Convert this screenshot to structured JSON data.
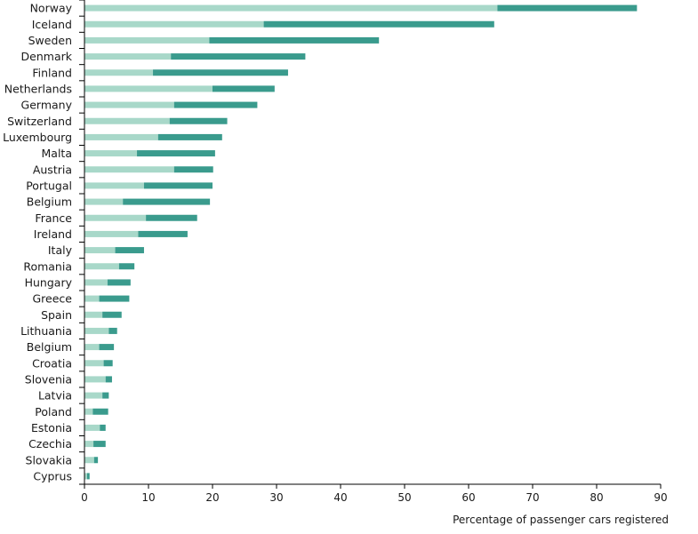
{
  "chart_data": {
    "type": "bar",
    "orientation": "horizontal",
    "stacked": true,
    "categories": [
      "Norway",
      "Iceland",
      "Sweden",
      "Denmark",
      "Finland",
      "Netherlands",
      "Germany",
      "Switzerland",
      "Luxembourg",
      "Malta",
      "Austria",
      "Portugal",
      "Belgium",
      "France",
      "Ireland",
      "Italy",
      "Romania",
      "Hungary",
      "Greece",
      "Spain",
      "Lithuania",
      "Belgium",
      "Croatia",
      "Slovenia",
      "Latvia",
      "Poland",
      "Estonia",
      "Czechia",
      "Slovakia",
      "Cyprus"
    ],
    "series": [
      {
        "values": [
          64.5,
          28.0,
          19.5,
          13.5,
          10.7,
          20.0,
          14.0,
          13.3,
          11.5,
          8.2,
          14.0,
          9.3,
          6.0,
          9.6,
          8.4,
          4.8,
          5.4,
          3.6,
          2.3,
          2.8,
          3.8,
          2.3,
          3.0,
          3.3,
          2.8,
          1.3,
          2.4,
          1.4,
          1.5,
          0.4
        ]
      },
      {
        "values": [
          21.8,
          36.0,
          26.5,
          21.0,
          21.1,
          9.7,
          13.0,
          9.0,
          10.0,
          12.2,
          6.1,
          10.7,
          13.6,
          8.0,
          7.7,
          4.5,
          2.4,
          3.6,
          4.7,
          3.0,
          1.3,
          2.3,
          1.4,
          1.0,
          1.0,
          2.4,
          0.9,
          1.9,
          0.6,
          0.4
        ]
      }
    ],
    "colors": [
      "#a8d8c9",
      "#3a9b8d"
    ],
    "xlabel": "Percentage of passenger cars registered",
    "xlim": [
      0,
      90
    ],
    "xticks": [
      0,
      10,
      20,
      30,
      40,
      50,
      60,
      70,
      80,
      90
    ],
    "grid": false,
    "legend": "none"
  }
}
